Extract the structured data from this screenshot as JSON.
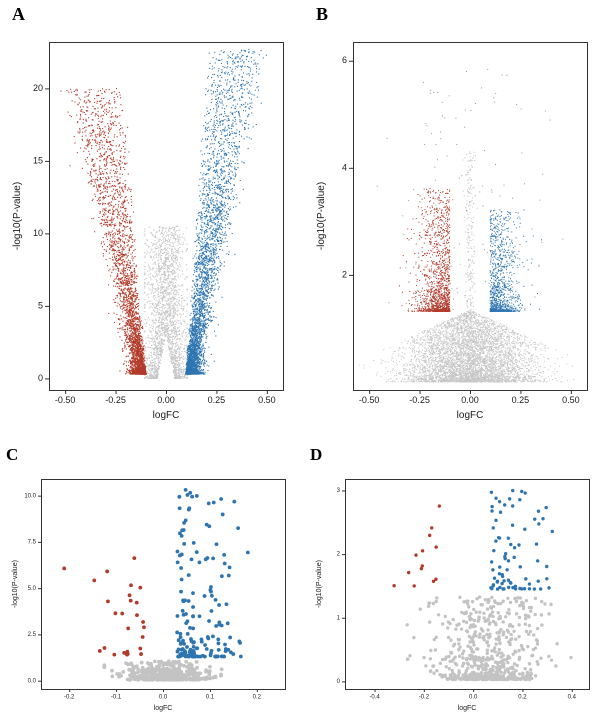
{
  "figure": {
    "background": "#ffffff",
    "description_colors": {
      "upregulated": "#2e75b0",
      "downregulated": "#b23a2a",
      "nonsignificant": "#c3c3c3"
    }
  },
  "chart_data": [
    {
      "panel_label": "A",
      "type": "scatter",
      "variant": "volcano",
      "xlabel": "logFC",
      "ylabel": "-log10(P-value)",
      "xlim": [
        -0.58,
        0.58
      ],
      "ylim": [
        -0.8,
        23.2
      ],
      "xticks": [
        {
          "v": -0.5,
          "label": "-0.50"
        },
        {
          "v": -0.25,
          "label": "-0.25"
        },
        {
          "v": 0,
          "label": "0.00"
        },
        {
          "v": 0.25,
          "label": "0.25"
        },
        {
          "v": 0.5,
          "label": "0.50"
        }
      ],
      "yticks": [
        {
          "v": 0,
          "label": "0"
        },
        {
          "v": 5,
          "label": "5"
        },
        {
          "v": 10,
          "label": "10"
        },
        {
          "v": 15,
          "label": "15"
        },
        {
          "v": 20,
          "label": "20"
        }
      ],
      "point_size": 1.1,
      "seed": 101,
      "populations": [
        {
          "name": "nonsignificant",
          "color": "#c6c6c6",
          "n": 2600,
          "kind": "cloud",
          "cx": 0,
          "sd": 0.05,
          "clampMin": -0.105,
          "clampMax": 0.105,
          "ymin": 0,
          "yrange": 10.5,
          "yexp": 2.0,
          "notch": 3.0,
          "notchW": 0.042
        },
        {
          "name": "downregulated",
          "color": "#b23a2a",
          "n": 3200,
          "kind": "arm",
          "side": -1,
          "base": 0.095,
          "slope": 0.3,
          "spreadMin": 0.35,
          "spreadRange": 0.85,
          "jitter": 0.035,
          "clampMax": 0.56,
          "ymin": 0.3,
          "yrange": 19.7,
          "yexp": 2.3
        },
        {
          "name": "upregulated",
          "color": "#2e75b0",
          "n": 3800,
          "kind": "arm",
          "side": 1,
          "base": 0.095,
          "slope": 0.3,
          "spreadMin": 0.35,
          "spreadRange": 0.85,
          "jitter": 0.035,
          "clampMax": 0.56,
          "ymin": 0.3,
          "yrange": 22.4,
          "yexp": 2.3
        }
      ]
    },
    {
      "panel_label": "B",
      "type": "scatter",
      "variant": "volcano",
      "xlabel": "logFC",
      "ylabel": "-log10(P-value)",
      "xlim": [
        -0.58,
        0.58
      ],
      "ylim": [
        -0.15,
        6.35
      ],
      "xticks": [
        {
          "v": -0.5,
          "label": "-0.50"
        },
        {
          "v": -0.25,
          "label": "-0.25"
        },
        {
          "v": 0,
          "label": "0.00"
        },
        {
          "v": 0.25,
          "label": "0.25"
        },
        {
          "v": 0.5,
          "label": "0.50"
        }
      ],
      "yticks": [
        {
          "v": 2,
          "label": "2"
        },
        {
          "v": 4,
          "label": "4"
        },
        {
          "v": 6,
          "label": "6"
        }
      ],
      "point_size": 1.0,
      "seed": 202,
      "populations": [
        {
          "name": "nonsignificant",
          "color": "#c6c6c6",
          "n": 5200,
          "kind": "tri",
          "cx": 0,
          "sd": 0.155,
          "clampMin": -0.55,
          "clampMax": 0.55,
          "ymin": 0,
          "yrange": 1.35,
          "yexp": 1.5,
          "spread": 0.78
        },
        {
          "name": "center-spike",
          "color": "#c6c6c6",
          "n": 380,
          "kind": "cloud",
          "cx": 0,
          "sd": 0.013,
          "clampMin": -0.05,
          "clampMax": 0.05,
          "ymin": 0,
          "yrange": 4.3,
          "yexp": 1.6
        },
        {
          "name": "downregulated",
          "color": "#b23a2a",
          "n": 1400,
          "kind": "edge",
          "side": -1,
          "base": 0.1,
          "jitter": 0.075,
          "clampMax": 0.38,
          "ymin": 1.32,
          "yrange": 2.3,
          "yexp": 2.6
        },
        {
          "name": "upregulated",
          "color": "#2e75b0",
          "n": 1100,
          "kind": "edge",
          "side": 1,
          "base": 0.1,
          "jitter": 0.07,
          "clampMax": 0.36,
          "ymin": 1.32,
          "yrange": 1.9,
          "yexp": 2.8
        },
        {
          "name": "scattered-high",
          "color": "#999999",
          "n": 130,
          "kind": "cloud",
          "cx": 0,
          "sd": 0.19,
          "clampMin": -0.52,
          "clampMax": 0.52,
          "ymin": 1.35,
          "yrange": 4.5,
          "yexp": 1.3
        }
      ]
    },
    {
      "panel_label": "C",
      "type": "scatter",
      "variant": "volcano",
      "xlabel": "logFC",
      "ylabel": "-log10(P-value)",
      "xlim": [
        -0.26,
        0.26
      ],
      "ylim": [
        -0.45,
        10.9
      ],
      "xticks": [
        {
          "v": -0.2,
          "label": "-0.2"
        },
        {
          "v": -0.1,
          "label": "-0.1"
        },
        {
          "v": 0,
          "label": "0.0"
        },
        {
          "v": 0.1,
          "label": "0.1"
        },
        {
          "v": 0.2,
          "label": "0.2"
        }
      ],
      "yticks": [
        {
          "v": 0,
          "label": "0.0"
        },
        {
          "v": 2.5,
          "label": "2.5"
        },
        {
          "v": 5,
          "label": "5.0"
        },
        {
          "v": 7.5,
          "label": "7.5"
        },
        {
          "v": 10,
          "label": "10.0"
        }
      ],
      "point_size": 1.9,
      "seed": 303,
      "populations": [
        {
          "name": "nonsignificant",
          "color": "#c3c3c3",
          "n": 380,
          "kind": "cloud",
          "cx": 0.005,
          "sd": 0.05,
          "clampMin": -0.125,
          "clampMax": 0.125,
          "ymin": 0.05,
          "yrange": 1.0,
          "yexp": 2.2,
          "lift": 5.0,
          "liftThresh": 0.08
        },
        {
          "name": "upregulated",
          "color": "#2e75b0",
          "n": 165,
          "kind": "edge",
          "side": 1,
          "base": 0.03,
          "jitter": 0.055,
          "clampMax": 0.225,
          "ymin": 1.3,
          "yrange": 9.1,
          "yexp": 2.7
        },
        {
          "name": "downregulated",
          "color": "#b23a2a",
          "n": 26,
          "kind": "edge",
          "side": -1,
          "base": 0.04,
          "jitter": 0.065,
          "clampMax": 0.235,
          "ymin": 1.4,
          "yrange": 6.1,
          "yexp": 1.9
        }
      ]
    },
    {
      "panel_label": "D",
      "type": "scatter",
      "variant": "volcano",
      "xlabel": "logFC",
      "ylabel": "-log10(P-value)",
      "xlim": [
        -0.52,
        0.47
      ],
      "ylim": [
        -0.12,
        3.18
      ],
      "xticks": [
        {
          "v": -0.4,
          "label": "-0.4"
        },
        {
          "v": -0.2,
          "label": "-0.2"
        },
        {
          "v": 0,
          "label": "0.0"
        },
        {
          "v": 0.2,
          "label": "0.2"
        },
        {
          "v": 0.4,
          "label": "0.4"
        }
      ],
      "yticks": [
        {
          "v": 0,
          "label": "0"
        },
        {
          "v": 1,
          "label": "1"
        },
        {
          "v": 2,
          "label": "2"
        },
        {
          "v": 3,
          "label": "3"
        }
      ],
      "point_size": 1.7,
      "seed": 404,
      "populations": [
        {
          "name": "nonsignificant",
          "color": "#c3c3c3",
          "n": 620,
          "kind": "cloud",
          "cx": 0.06,
          "sd": 0.11,
          "clampMin": -0.46,
          "clampMax": 0.41,
          "ymin": 0.03,
          "yrange": 1.3,
          "yexp": 2.6,
          "lift": 2.0,
          "liftThresh": 0.17
        },
        {
          "name": "upregulated",
          "color": "#2e75b0",
          "n": 78,
          "kind": "edge",
          "side": 1,
          "base": 0.07,
          "jitter": 0.11,
          "clampMax": 0.4,
          "ymin": 1.45,
          "yrange": 1.55,
          "yexp": 2.3
        },
        {
          "name": "downregulated",
          "color": "#b23a2a",
          "n": 13,
          "kind": "edge",
          "side": -1,
          "base": 0.13,
          "jitter": 0.12,
          "clampMax": 0.45,
          "ymin": 1.5,
          "yrange": 1.45,
          "yexp": 1.6
        }
      ]
    }
  ]
}
